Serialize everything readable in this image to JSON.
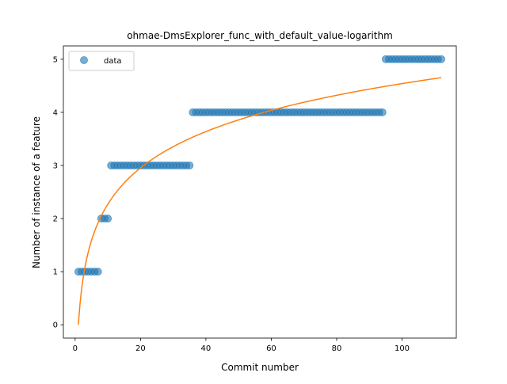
{
  "chart_data": {
    "type": "scatter",
    "title": "ohmae-DmsExplorer_func_with_default_value-logarithm",
    "xlabel": "Commit number",
    "ylabel": "Number of instance of a feature",
    "xlim": [
      -3.6,
      116.6
    ],
    "ylim": [
      -0.25,
      5.25
    ],
    "xticks": [
      0,
      20,
      40,
      60,
      80,
      100
    ],
    "yticks": [
      0,
      1,
      2,
      3,
      4,
      5
    ],
    "grid": false,
    "legend_position": "top-left",
    "series": [
      {
        "name": "data",
        "kind": "scatter",
        "color": "#1f77b4",
        "step_segments": [
          {
            "x_from": 1,
            "x_to": 7,
            "y": 1
          },
          {
            "x_from": 8,
            "x_to": 10,
            "y": 2
          },
          {
            "x_from": 11,
            "x_to": 35,
            "y": 3
          },
          {
            "x_from": 36,
            "x_to": 94,
            "y": 4
          },
          {
            "x_from": 95,
            "x_to": 112,
            "y": 5
          }
        ]
      },
      {
        "kind": "line",
        "color": "#ff7f0e",
        "model": "logarithmic",
        "a": 0.0,
        "b": 0.986,
        "x_range": [
          1,
          112
        ]
      }
    ]
  },
  "legend": {
    "entries": [
      {
        "label": "data",
        "color": "#1f77b4"
      }
    ]
  },
  "colors": {
    "scatter": "#1f77b4",
    "fit_line": "#ff7f0e",
    "axes": "#000000",
    "background": "#ffffff"
  }
}
